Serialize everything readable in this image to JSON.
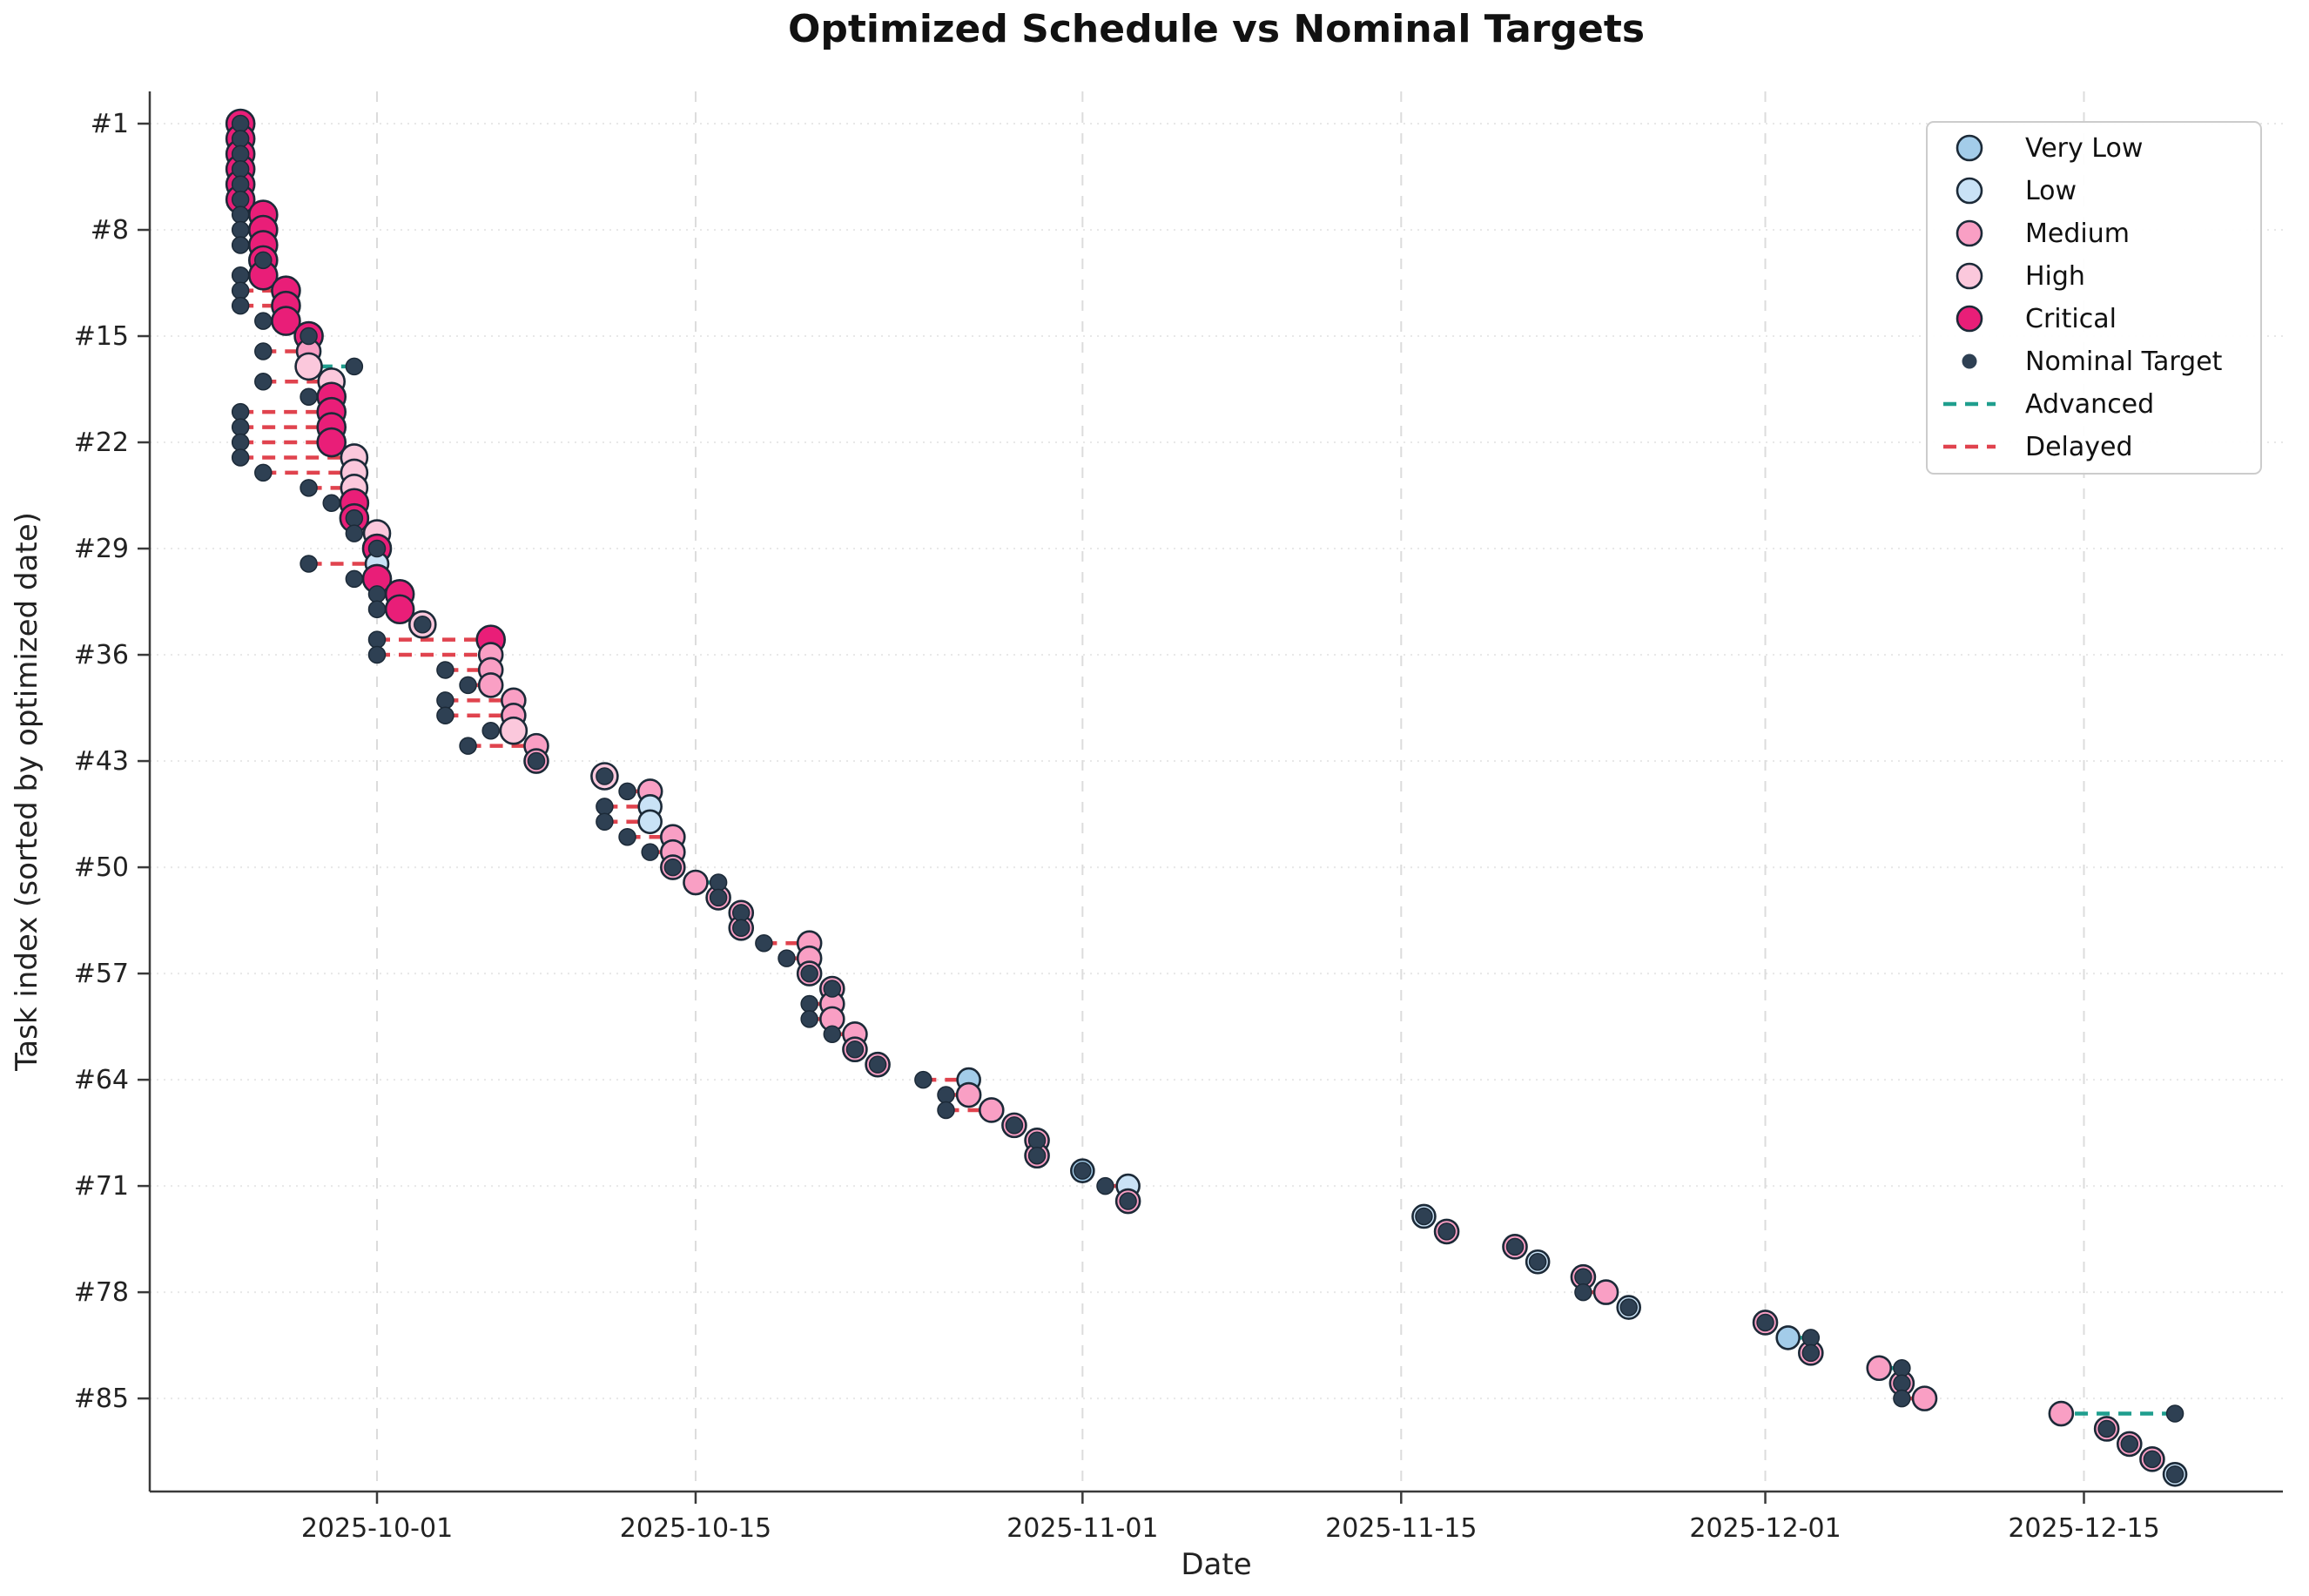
{
  "title": "Optimized Schedule vs Nominal Targets",
  "xlabel": "Date",
  "ylabel": "Task index (sorted by optimized date)",
  "chart_data": {
    "type": "scatter",
    "x_tick_labels": [
      "2025-10-01",
      "2025-10-15",
      "2025-11-01",
      "2025-11-15",
      "2025-12-01",
      "2025-12-15"
    ],
    "y_tick_indices": [
      1,
      8,
      15,
      22,
      29,
      36,
      43,
      50,
      57,
      64,
      71,
      78,
      85
    ],
    "y_tick_labels": [
      "#1",
      "#8",
      "#15",
      "#22",
      "#29",
      "#36",
      "#43",
      "#50",
      "#57",
      "#64",
      "#71",
      "#78",
      "#85"
    ],
    "x_range": [
      "2025-09-21",
      "2025-12-24"
    ],
    "y_range_tasks": [
      1,
      90
    ],
    "grid": true,
    "legend_position": "upper right",
    "priority_names": {
      "VL": "Very Low",
      "L": "Low",
      "M": "Medium",
      "H": "High",
      "C": "Critical"
    },
    "colors": {
      "very_low": "#a3cce9",
      "low": "#c9e2f6",
      "medium": "#f99fc4",
      "high": "#fbc8dc",
      "critical": "#e91e78",
      "nominal": "#2e4053",
      "marker_edge": "#1c2a38",
      "advanced": "#1f9e8e",
      "delayed": "#e0434e",
      "grid_h": "#e8e8e8",
      "grid_v": "#dcdcdc",
      "spine": "#3a3a3a"
    },
    "legend": {
      "items": [
        {
          "label": "Very Low",
          "type": "circle",
          "color": "#a3cce9"
        },
        {
          "label": "Low",
          "type": "circle",
          "color": "#c9e2f6"
        },
        {
          "label": "Medium",
          "type": "circle",
          "color": "#f99fc4"
        },
        {
          "label": "High",
          "type": "circle",
          "color": "#fbc8dc"
        },
        {
          "label": "Critical",
          "type": "circle",
          "color": "#e91e78"
        },
        {
          "label": "Nominal Target",
          "type": "dot",
          "color": "#2e4053"
        },
        {
          "label": "Advanced",
          "type": "dashed-line",
          "color": "#1f9e8e"
        },
        {
          "label": "Delayed",
          "type": "dashed-line",
          "color": "#e0434e"
        }
      ]
    },
    "tasks": [
      [
        "2025-09-25",
        "C",
        "2025-09-25"
      ],
      [
        "2025-09-25",
        "C",
        "2025-09-25"
      ],
      [
        "2025-09-25",
        "C",
        "2025-09-25"
      ],
      [
        "2025-09-25",
        "C",
        "2025-09-25"
      ],
      [
        "2025-09-25",
        "C",
        "2025-09-25"
      ],
      [
        "2025-09-25",
        "C",
        "2025-09-25"
      ],
      [
        "2025-09-26",
        "C",
        "2025-09-25"
      ],
      [
        "2025-09-26",
        "C",
        "2025-09-25"
      ],
      [
        "2025-09-26",
        "C",
        "2025-09-25"
      ],
      [
        "2025-09-26",
        "C",
        "2025-09-26"
      ],
      [
        "2025-09-26",
        "C",
        "2025-09-25"
      ],
      [
        "2025-09-27",
        "C",
        "2025-09-25"
      ],
      [
        "2025-09-27",
        "C",
        "2025-09-25"
      ],
      [
        "2025-09-27",
        "C",
        "2025-09-26"
      ],
      [
        "2025-09-28",
        "C",
        "2025-09-28"
      ],
      [
        "2025-09-28",
        "M",
        "2025-09-26"
      ],
      [
        "2025-09-28",
        "H",
        "2025-09-30"
      ],
      [
        "2025-09-29",
        "H",
        "2025-09-26"
      ],
      [
        "2025-09-29",
        "C",
        "2025-09-28"
      ],
      [
        "2025-09-29",
        "C",
        "2025-09-25"
      ],
      [
        "2025-09-29",
        "C",
        "2025-09-25"
      ],
      [
        "2025-09-29",
        "C",
        "2025-09-25"
      ],
      [
        "2025-09-30",
        "H",
        "2025-09-25"
      ],
      [
        "2025-09-30",
        "H",
        "2025-09-26"
      ],
      [
        "2025-09-30",
        "H",
        "2025-09-28"
      ],
      [
        "2025-09-30",
        "C",
        "2025-09-29"
      ],
      [
        "2025-09-30",
        "C",
        "2025-09-30"
      ],
      [
        "2025-10-01",
        "H",
        "2025-09-30"
      ],
      [
        "2025-10-01",
        "C",
        "2025-10-01"
      ],
      [
        "2025-10-01",
        "L",
        "2025-09-28"
      ],
      [
        "2025-10-01",
        "C",
        "2025-09-30"
      ],
      [
        "2025-10-02",
        "C",
        "2025-10-01"
      ],
      [
        "2025-10-02",
        "C",
        "2025-10-01"
      ],
      [
        "2025-10-03",
        "H",
        "2025-10-03"
      ],
      [
        "2025-10-06",
        "C",
        "2025-10-01"
      ],
      [
        "2025-10-06",
        "M",
        "2025-10-01"
      ],
      [
        "2025-10-06",
        "M",
        "2025-10-04"
      ],
      [
        "2025-10-06",
        "M",
        "2025-10-05"
      ],
      [
        "2025-10-07",
        "M",
        "2025-10-04"
      ],
      [
        "2025-10-07",
        "M",
        "2025-10-04"
      ],
      [
        "2025-10-07",
        "H",
        "2025-10-06"
      ],
      [
        "2025-10-08",
        "M",
        "2025-10-05"
      ],
      [
        "2025-10-08",
        "M",
        "2025-10-08"
      ],
      [
        "2025-10-11",
        "H",
        "2025-10-11"
      ],
      [
        "2025-10-13",
        "M",
        "2025-10-12"
      ],
      [
        "2025-10-13",
        "L",
        "2025-10-11"
      ],
      [
        "2025-10-13",
        "L",
        "2025-10-11"
      ],
      [
        "2025-10-14",
        "M",
        "2025-10-12"
      ],
      [
        "2025-10-14",
        "M",
        "2025-10-13"
      ],
      [
        "2025-10-14",
        "M",
        "2025-10-14"
      ],
      [
        "2025-10-15",
        "M",
        "2025-10-16"
      ],
      [
        "2025-10-16",
        "M",
        "2025-10-16"
      ],
      [
        "2025-10-17",
        "M",
        "2025-10-17"
      ],
      [
        "2025-10-17",
        "M",
        "2025-10-17"
      ],
      [
        "2025-10-20",
        "M",
        "2025-10-18"
      ],
      [
        "2025-10-20",
        "M",
        "2025-10-19"
      ],
      [
        "2025-10-20",
        "M",
        "2025-10-20"
      ],
      [
        "2025-10-21",
        "M",
        "2025-10-21"
      ],
      [
        "2025-10-21",
        "M",
        "2025-10-20"
      ],
      [
        "2025-10-21",
        "M",
        "2025-10-20"
      ],
      [
        "2025-10-22",
        "M",
        "2025-10-21"
      ],
      [
        "2025-10-22",
        "M",
        "2025-10-22"
      ],
      [
        "2025-10-23",
        "M",
        "2025-10-23"
      ],
      [
        "2025-10-27",
        "VL",
        "2025-10-25"
      ],
      [
        "2025-10-27",
        "M",
        "2025-10-26"
      ],
      [
        "2025-10-28",
        "M",
        "2025-10-26"
      ],
      [
        "2025-10-29",
        "M",
        "2025-10-29"
      ],
      [
        "2025-10-30",
        "M",
        "2025-10-30"
      ],
      [
        "2025-10-30",
        "M",
        "2025-10-30"
      ],
      [
        "2025-11-01",
        "VL",
        "2025-11-01"
      ],
      [
        "2025-11-03",
        "L",
        "2025-11-02"
      ],
      [
        "2025-11-03",
        "M",
        "2025-11-03"
      ],
      [
        "2025-11-16",
        "L",
        "2025-11-16"
      ],
      [
        "2025-11-17",
        "M",
        "2025-11-17"
      ],
      [
        "2025-11-20",
        "M",
        "2025-11-20"
      ],
      [
        "2025-11-21",
        "L",
        "2025-11-21"
      ],
      [
        "2025-11-23",
        "M",
        "2025-11-23"
      ],
      [
        "2025-11-24",
        "M",
        "2025-11-23"
      ],
      [
        "2025-11-25",
        "L",
        "2025-11-25"
      ],
      [
        "2025-12-01",
        "M",
        "2025-12-01"
      ],
      [
        "2025-12-02",
        "VL",
        "2025-12-03"
      ],
      [
        "2025-12-03",
        "M",
        "2025-12-03"
      ],
      [
        "2025-12-06",
        "M",
        "2025-12-07"
      ],
      [
        "2025-12-07",
        "M",
        "2025-12-07"
      ],
      [
        "2025-12-08",
        "M",
        "2025-12-07"
      ],
      [
        "2025-12-14",
        "M",
        "2025-12-19"
      ],
      [
        "2025-12-16",
        "M",
        "2025-12-16"
      ],
      [
        "2025-12-17",
        "M",
        "2025-12-17"
      ],
      [
        "2025-12-18",
        "M",
        "2025-12-18"
      ],
      [
        "2025-12-19",
        "L",
        "2025-12-19"
      ]
    ]
  }
}
